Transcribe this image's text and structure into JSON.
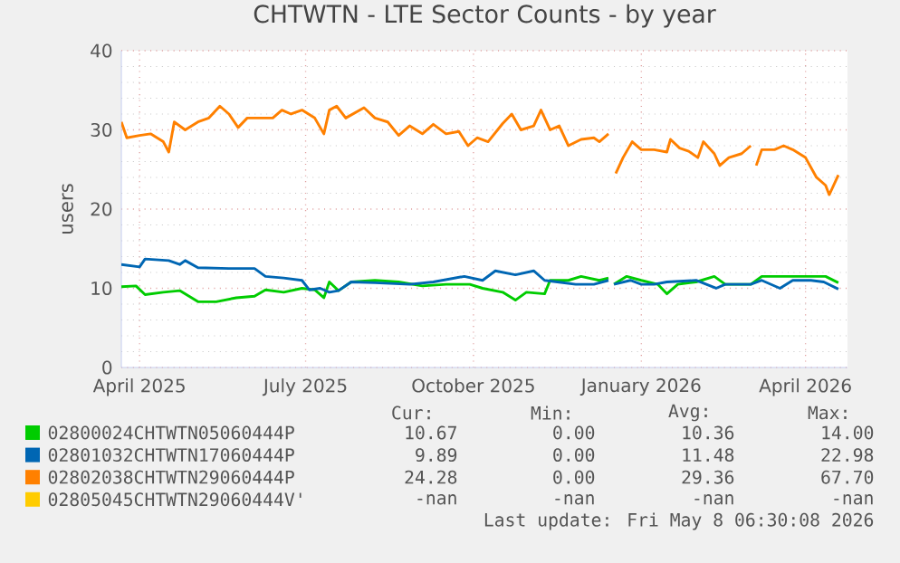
{
  "chart_data": {
    "type": "line",
    "title": "CHTWTN - LTE Sector Counts - by year",
    "ylabel": "users",
    "xlim": [
      "2025-04-06",
      "2026-05-09"
    ],
    "ylim": [
      0,
      40
    ],
    "yticks": [
      0,
      10,
      20,
      30,
      40
    ],
    "xticks": [
      {
        "value": "2025-04-16",
        "label": "April 2025"
      },
      {
        "value": "2025-07-16",
        "label": "July 2025"
      },
      {
        "value": "2025-10-16",
        "label": "October 2025"
      },
      {
        "value": "2026-01-16",
        "label": "January 2026"
      },
      {
        "value": "2026-04-16",
        "label": "April 2026"
      }
    ],
    "grid": true,
    "legend": "bottom",
    "series": [
      {
        "name": "02800024CHTWTN05060444P",
        "color": "#00cc00",
        "x": [
          "2025-04-06",
          "2025-04-14",
          "2025-04-19",
          "2025-04-29",
          "2025-05-08",
          "2025-05-18",
          "2025-05-28",
          "2025-06-08",
          "2025-06-18",
          "2025-06-24",
          "2025-07-04",
          "2025-07-14",
          "2025-07-21",
          "2025-07-26",
          "2025-07-29",
          "2025-08-03",
          "2025-08-10",
          "2025-08-23",
          "2025-09-05",
          "2025-09-18",
          "2025-10-01",
          "2025-10-14",
          "2025-10-21",
          "2025-11-01",
          "2025-11-08",
          "2025-11-14",
          "2025-11-24",
          "2025-11-27",
          "2025-12-07",
          "2025-12-14",
          "2025-12-24",
          "2025-12-29",
          "2025-12-31",
          "2026-01-01",
          "2026-01-08",
          "2026-01-16",
          "2026-01-25",
          "2026-01-30",
          "2026-02-05",
          "2026-02-15",
          "2026-02-25",
          "2026-03-03",
          "2026-03-17",
          "2026-03-23",
          "2026-04-06",
          "2026-04-19",
          "2026-04-27",
          "2026-05-04"
        ],
        "values": [
          10.2,
          10.3,
          9.2,
          9.5,
          9.7,
          8.3,
          8.3,
          8.8,
          9,
          9.8,
          9.5,
          10,
          9.8,
          8.8,
          10.8,
          9.7,
          10.8,
          11,
          10.8,
          10.3,
          10.5,
          10.5,
          10,
          9.5,
          8.5,
          9.5,
          9.3,
          11,
          11,
          11.5,
          11,
          11.3,
          null,
          10.5,
          11.5,
          11,
          10.5,
          9.3,
          10.5,
          10.8,
          11.5,
          10.5,
          10.5,
          11.5,
          11.5,
          11.5,
          11.5,
          10.7
        ]
      },
      {
        "name": "02801032CHTWTN17060444P",
        "color": "#0066b3",
        "x": [
          "2025-04-06",
          "2025-04-16",
          "2025-04-19",
          "2025-05-02",
          "2025-05-08",
          "2025-05-11",
          "2025-05-18",
          "2025-06-04",
          "2025-06-18",
          "2025-06-24",
          "2025-07-04",
          "2025-07-14",
          "2025-07-18",
          "2025-07-24",
          "2025-07-29",
          "2025-08-03",
          "2025-08-10",
          "2025-08-23",
          "2025-09-11",
          "2025-09-24",
          "2025-10-11",
          "2025-10-21",
          "2025-10-28",
          "2025-11-08",
          "2025-11-18",
          "2025-11-24",
          "2025-12-01",
          "2025-12-11",
          "2025-12-21",
          "2025-12-29",
          "2025-12-31",
          "2026-01-01",
          "2026-01-10",
          "2026-01-16",
          "2026-01-23",
          "2026-01-30",
          "2026-02-15",
          "2026-02-26",
          "2026-03-03",
          "2026-03-17",
          "2026-03-23",
          "2026-04-02",
          "2026-04-09",
          "2026-04-19",
          "2026-04-26",
          "2026-05-04"
        ],
        "values": [
          13,
          12.7,
          13.7,
          13.5,
          13,
          13.5,
          12.6,
          12.5,
          12.5,
          11.5,
          11.3,
          11,
          9.8,
          10,
          9.5,
          9.7,
          10.8,
          10.7,
          10.5,
          10.8,
          11.5,
          11,
          12.2,
          11.7,
          12.2,
          11,
          10.8,
          10.5,
          10.5,
          11,
          null,
          10.5,
          11,
          10.5,
          10.5,
          10.8,
          11,
          10,
          10.5,
          10.5,
          11,
          10,
          11,
          11,
          10.8,
          9.9
        ]
      },
      {
        "name": "02802038CHTWTN29060444P",
        "color": "#ff8000",
        "x": [
          "2025-04-06",
          "2025-04-09",
          "2025-04-16",
          "2025-04-22",
          "2025-04-29",
          "2025-05-02",
          "2025-05-05",
          "2025-05-11",
          "2025-05-18",
          "2025-05-24",
          "2025-05-30",
          "2025-06-04",
          "2025-06-09",
          "2025-06-14",
          "2025-06-21",
          "2025-06-28",
          "2025-07-03",
          "2025-07-08",
          "2025-07-14",
          "2025-07-21",
          "2025-07-26",
          "2025-07-29",
          "2025-08-02",
          "2025-08-07",
          "2025-08-17",
          "2025-08-23",
          "2025-08-30",
          "2025-09-05",
          "2025-09-11",
          "2025-09-18",
          "2025-09-24",
          "2025-10-01",
          "2025-10-08",
          "2025-10-13",
          "2025-10-18",
          "2025-10-24",
          "2025-11-01",
          "2025-11-06",
          "2025-11-11",
          "2025-11-18",
          "2025-11-22",
          "2025-11-27",
          "2025-12-02",
          "2025-12-07",
          "2025-12-14",
          "2025-12-21",
          "2025-12-24",
          "2025-12-29",
          "2025-12-31",
          "2026-01-02",
          "2026-01-06",
          "2026-01-11",
          "2026-01-16",
          "2026-01-23",
          "2026-01-30",
          "2026-02-01",
          "2026-02-06",
          "2026-02-11",
          "2026-02-16",
          "2026-02-19",
          "2026-02-25",
          "2026-02-28",
          "2026-03-05",
          "2026-03-12",
          "2026-03-17",
          "2026-03-18",
          "2026-03-20",
          "2026-03-23",
          "2026-03-30",
          "2026-04-04",
          "2026-04-09",
          "2026-04-16",
          "2026-04-22",
          "2026-04-27",
          "2026-04-29",
          "2026-05-04"
        ],
        "values": [
          31,
          29,
          29.3,
          29.5,
          28.5,
          27.2,
          31,
          30,
          31,
          31.5,
          33,
          32,
          30.3,
          31.5,
          31.5,
          31.5,
          32.5,
          32,
          32.5,
          31.5,
          29.5,
          32.5,
          33,
          31.5,
          32.8,
          31.5,
          31,
          29.3,
          30.5,
          29.5,
          30.7,
          29.5,
          29.8,
          28,
          29,
          28.5,
          30.8,
          32,
          30,
          30.5,
          32.5,
          30,
          30.5,
          28,
          28.8,
          29,
          28.5,
          29.5,
          null,
          24.5,
          26.5,
          28.5,
          27.5,
          27.5,
          27.2,
          28.8,
          27.7,
          27.3,
          26.5,
          28.5,
          27,
          25.5,
          26.5,
          27,
          28,
          null,
          25.5,
          27.5,
          27.5,
          28,
          27.5,
          26.5,
          24,
          23,
          21.8,
          24.3
        ]
      },
      {
        "name": "02805045CHTWTN29060444V'",
        "color": "#ffcc00"
      }
    ],
    "annotations": [
      "Cur:",
      "Min:",
      "Avg:",
      "Max:",
      "10.67",
      "0.00",
      "10.36",
      "14.00",
      "9.89",
      "0.00",
      "11.48",
      "22.98",
      "24.28",
      "0.00",
      "29.36",
      "67.70",
      "-nan",
      "-nan",
      "-nan",
      "-nan",
      "Last update: Fri May 8 06:30:08 2026"
    ]
  }
}
